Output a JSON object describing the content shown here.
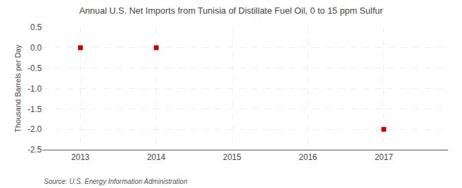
{
  "chart_data": {
    "type": "scatter",
    "title": "Annual U.S. Net Imports from Tunisia of Distillate Fuel Oil, 0 to 15 ppm Sulfur",
    "ylabel": "Thousand Barrels per Day",
    "annotations": [
      "Source: U.S. Energy Information Administration"
    ],
    "x": [
      2013,
      2014,
      2017
    ],
    "values": [
      0.0,
      0.0,
      -2.0
    ],
    "color": "#cc0000",
    "marker": "square",
    "xlim": [
      2012.5,
      2017.85
    ],
    "ylim": [
      -2.5,
      0.5
    ],
    "xticks": [
      2013,
      2014,
      2015,
      2016,
      2017
    ],
    "yticks": [
      0.5,
      {
        "value": 0,
        "label": "0.0"
      },
      -0.5,
      {
        "value": -1,
        "label": "-1.0"
      },
      -1.5,
      {
        "value": -2,
        "label": "-2.0"
      },
      -2.5
    ],
    "grid": true
  }
}
